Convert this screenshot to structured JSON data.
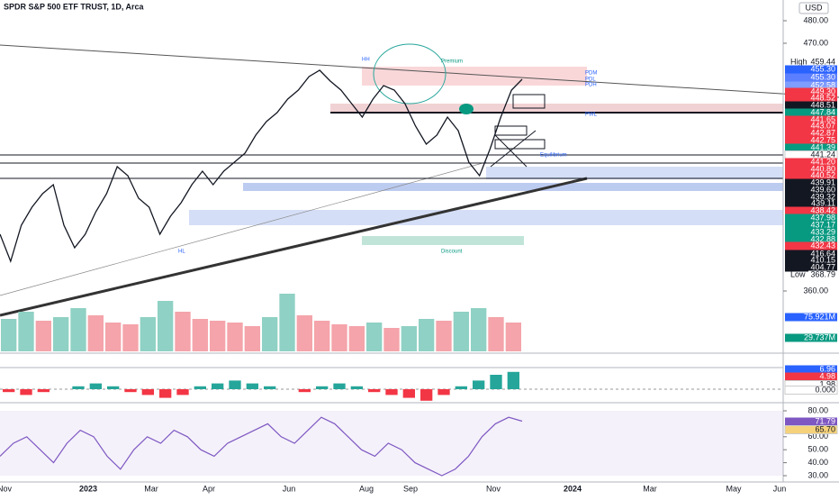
{
  "header": {
    "symbol": "SPDR S&P 500 ETF TRUST, 1D, Arca",
    "currency": "USD"
  },
  "price_pane": {
    "axis_ticks": [
      {
        "value": 480,
        "label": "480.00"
      },
      {
        "value": 470,
        "label": "470.00"
      },
      {
        "value": 360,
        "label": "360.00"
      }
    ],
    "line_color": "#131722",
    "closes": [
      385.2,
      373.2,
      389.2,
      397.2,
      403.2,
      407.2,
      389.2,
      379.2,
      385.2,
      395.2,
      403.2,
      415.2,
      411.2,
      401.2,
      397.2,
      385.2,
      393.2,
      399.2,
      407.2,
      413.2,
      407.2,
      413.2,
      417.2,
      421.2,
      429.2,
      435.2,
      439.2,
      445.2,
      449.2,
      455.2,
      458,
      453.2,
      449.2,
      443.2,
      437.2,
      445.2,
      451.2,
      449.2,
      443.2,
      433.2,
      425.2,
      429.2,
      437.2,
      431.2,
      417.2,
      411.2,
      423.2,
      437.2,
      449.2,
      454
    ],
    "badges": [
      {
        "tag": "High",
        "label": "459.44",
        "color": "#ffffff"
      },
      {
        "label": "455.30",
        "color": "#2962ff"
      },
      {
        "label": "455.30",
        "color": "#5b7fff"
      },
      {
        "label": "452.58",
        "color": "#7f9cff"
      },
      {
        "label": "449.30",
        "color": "#f23645"
      },
      {
        "label": "448.52",
        "color": "#f23645"
      },
      {
        "label": "448.51",
        "color": "#131722"
      },
      {
        "label": "447.84",
        "color": "#089981"
      },
      {
        "label": "441.65",
        "color": "#f23645"
      },
      {
        "label": "443.07",
        "color": "#f23645"
      },
      {
        "label": "442.87",
        "color": "#f23645"
      },
      {
        "label": "442.75",
        "color": "#f23645"
      },
      {
        "label": "441.39",
        "color": "#089981"
      },
      {
        "label": "441.24",
        "color": "#ffffff"
      },
      {
        "label": "441.20",
        "color": "#f23645"
      },
      {
        "label": "440.80",
        "color": "#f23645"
      },
      {
        "label": "440.52",
        "color": "#f23645"
      },
      {
        "label": "439.91",
        "color": "#131722"
      },
      {
        "label": "439.60",
        "color": "#131722"
      },
      {
        "label": "439.32",
        "color": "#131722"
      },
      {
        "label": "439.11",
        "color": "#131722"
      },
      {
        "label": "438.42",
        "color": "#f23645"
      },
      {
        "label": "437.98",
        "color": "#089981"
      },
      {
        "label": "437.17",
        "color": "#089981"
      },
      {
        "label": "433.29",
        "color": "#089981"
      },
      {
        "label": "432.88",
        "color": "#089981"
      },
      {
        "label": "432.43",
        "color": "#f23645"
      },
      {
        "label": "416.64",
        "color": "#131722"
      },
      {
        "label": "410.15",
        "color": "#131722"
      },
      {
        "label": "404.77",
        "color": "#131722"
      },
      {
        "tag": "Low",
        "label": "368.79",
        "color": "#ffffff"
      }
    ],
    "annotations": [
      "HH",
      "Premium",
      "Discount",
      "Equilibrium",
      "PDM",
      "PDL",
      "PDH",
      "PWL",
      "HL"
    ]
  },
  "volume_pane": {
    "values": [
      90,
      110,
      85,
      95,
      120,
      100,
      80,
      75,
      95,
      140,
      110,
      90,
      85,
      80,
      70,
      95,
      160,
      100,
      85,
      75,
      70,
      80,
      65,
      70,
      90,
      85,
      110,
      120,
      95,
      80
    ],
    "badges": [
      {
        "label": "75.921M",
        "color": "#2962ff"
      },
      {
        "label": "29.737M",
        "color": "#089981"
      }
    ]
  },
  "macd_pane": {
    "histogram": [
      -1,
      -2,
      -1,
      0,
      1,
      2,
      1,
      -1,
      -2,
      -3,
      -2,
      1,
      2,
      3,
      2,
      1,
      0,
      -1,
      1,
      2,
      1,
      -1,
      -2,
      -3,
      -4,
      -2,
      1,
      3,
      5,
      6
    ],
    "badges": [
      {
        "label": "6.96",
        "color": "#2962ff"
      },
      {
        "label": "4.98",
        "color": "#f23645"
      },
      {
        "label": "1.98",
        "color": "#ffffff"
      },
      {
        "label": "0.000",
        "color": "#ffffff"
      }
    ]
  },
  "rsi_pane": {
    "values": [
      45,
      55,
      60,
      50,
      40,
      55,
      65,
      60,
      45,
      35,
      50,
      60,
      55,
      65,
      60,
      50,
      45,
      55,
      60,
      65,
      70,
      60,
      55,
      65,
      75,
      70,
      60,
      50,
      45,
      55,
      50,
      40,
      35,
      30,
      35,
      45,
      60,
      70,
      75,
      72
    ],
    "line_color": "#7e57c2",
    "axis_ticks": [
      {
        "value": 80,
        "label": "80.00"
      },
      {
        "value": 60,
        "label": "60.00"
      },
      {
        "value": 50,
        "label": "50.00"
      },
      {
        "value": 40,
        "label": "40.00"
      },
      {
        "value": 30,
        "label": "30.00"
      }
    ],
    "badges": [
      {
        "label": "71.79",
        "color": "#7e57c2"
      },
      {
        "label": "65.70",
        "color": "#f5d27a"
      }
    ]
  },
  "time_axis": [
    "Nov",
    "2023",
    "Mar",
    "Apr",
    "Jun",
    "Aug",
    "Sep",
    "Nov",
    "2024",
    "Mar",
    "May",
    "Jun"
  ]
}
